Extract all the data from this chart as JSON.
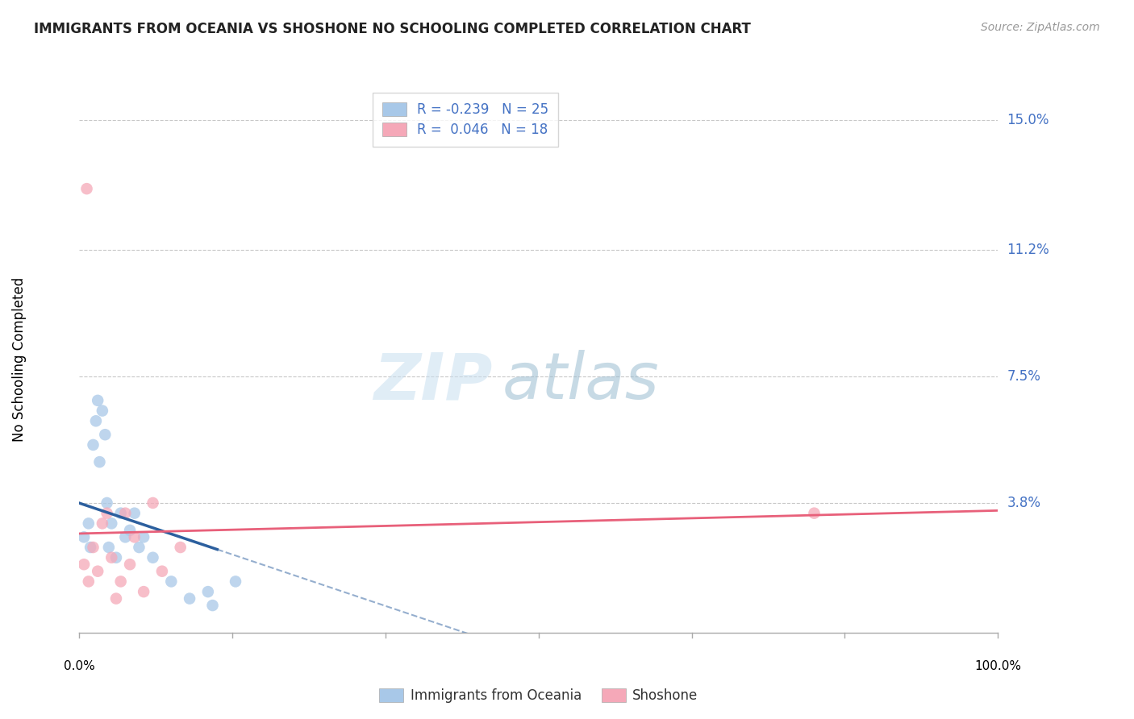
{
  "title": "IMMIGRANTS FROM OCEANIA VS SHOSHONE NO SCHOOLING COMPLETED CORRELATION CHART",
  "source": "Source: ZipAtlas.com",
  "ylabel": "No Schooling Completed",
  "xlim": [
    0.0,
    100.0
  ],
  "ylim": [
    0.0,
    16.0
  ],
  "ytick_vals": [
    3.8,
    7.5,
    11.2,
    15.0
  ],
  "ytick_labels": [
    "3.8%",
    "7.5%",
    "11.2%",
    "15.0%"
  ],
  "xtick_vals": [
    0,
    16.67,
    33.33,
    50,
    66.67,
    83.33,
    100
  ],
  "grid_color": "#c8c8c8",
  "background_color": "#ffffff",
  "blue_scatter_x": [
    0.5,
    1.0,
    1.2,
    1.5,
    1.8,
    2.0,
    2.2,
    2.5,
    2.8,
    3.0,
    3.2,
    3.5,
    4.0,
    4.5,
    5.0,
    5.5,
    6.0,
    6.5,
    7.0,
    8.0,
    10.0,
    12.0,
    14.0,
    14.5,
    17.0
  ],
  "blue_scatter_y": [
    2.8,
    3.2,
    2.5,
    5.5,
    6.2,
    6.8,
    5.0,
    6.5,
    5.8,
    3.8,
    2.5,
    3.2,
    2.2,
    3.5,
    2.8,
    3.0,
    3.5,
    2.5,
    2.8,
    2.2,
    1.5,
    1.0,
    1.2,
    0.8,
    1.5
  ],
  "blue_R": -0.239,
  "blue_N": 25,
  "pink_scatter_x": [
    0.5,
    1.0,
    1.5,
    2.0,
    2.5,
    3.0,
    3.5,
    4.0,
    4.5,
    5.0,
    5.5,
    6.0,
    7.0,
    8.0,
    9.0,
    11.0,
    80.0
  ],
  "pink_scatter_y": [
    2.0,
    1.5,
    2.5,
    1.8,
    3.2,
    3.5,
    2.2,
    1.0,
    1.5,
    3.5,
    2.0,
    2.8,
    1.2,
    3.8,
    1.8,
    2.5,
    3.5
  ],
  "pink_R": 0.046,
  "pink_N": 18,
  "pink_outlier_x": 0.8,
  "pink_outlier_y": 13.0,
  "blue_color": "#a8c8e8",
  "pink_color": "#f5a8b8",
  "blue_line_color": "#2c5f9e",
  "pink_line_color": "#e8607a",
  "blue_solid_end_x": 15.0,
  "legend_blue_label": "Immigrants from Oceania",
  "legend_pink_label": "Shoshone",
  "watermark_zip": "ZIP",
  "watermark_atlas": "atlas"
}
